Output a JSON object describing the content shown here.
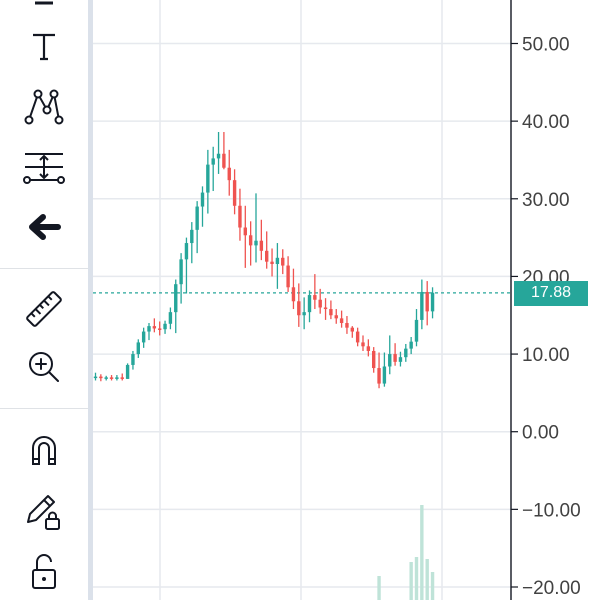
{
  "toolbar": {
    "tools": [
      {
        "name": "text-tool",
        "icon": "text-icon"
      },
      {
        "name": "pattern-tool",
        "icon": "pattern-icon"
      },
      {
        "name": "prediction-tool",
        "icon": "prediction-icon"
      },
      {
        "name": "back-tool",
        "icon": "arrow-left-icon"
      },
      {
        "name": "measure-tool",
        "icon": "ruler-icon"
      },
      {
        "name": "zoom-tool",
        "icon": "zoom-in-icon"
      },
      {
        "name": "magnet-tool",
        "icon": "magnet-icon"
      },
      {
        "name": "lock-drawings-tool",
        "icon": "pencil-lock-icon"
      },
      {
        "name": "lock-all-tool",
        "icon": "unlock-icon"
      }
    ]
  },
  "chart_data": {
    "type": "candlestick",
    "y_ticks": [
      "50.00",
      "40.00",
      "30.00",
      "20.00",
      "10.00",
      "0.00",
      "−10.00",
      "−20.00"
    ],
    "ylim": [
      -21,
      57
    ],
    "last_price": "17.88",
    "last_price_value": 17.88,
    "colors": {
      "up": "#26a69a",
      "down": "#ef5350",
      "volume": "#bfe3d8",
      "grid": "#e6e9ee",
      "last_price_line": "#26a69a"
    },
    "candles": [
      [
        7,
        7.6,
        6.6,
        7.1
      ],
      [
        7.1,
        7.4,
        6.5,
        6.9
      ],
      [
        6.9,
        7.2,
        6.6,
        7.0
      ],
      [
        7.0,
        7.3,
        6.6,
        6.8
      ],
      [
        6.8,
        7.3,
        6.6,
        7.0
      ],
      [
        7.0,
        7.5,
        6.6,
        6.8
      ],
      [
        6.8,
        8.8,
        6.8,
        8.6
      ],
      [
        8.6,
        10.4,
        8.0,
        10.0
      ],
      [
        10.0,
        11.9,
        9.5,
        11.5
      ],
      [
        11.5,
        13.4,
        10.8,
        12.9
      ],
      [
        12.9,
        14.0,
        11.8,
        13.6
      ],
      [
        13.6,
        14.6,
        12.8,
        13.3
      ],
      [
        13.3,
        14.2,
        12.4,
        13.2
      ],
      [
        13.2,
        14.3,
        12.6,
        13.9
      ],
      [
        13.9,
        16.0,
        13.2,
        15.4
      ],
      [
        15.4,
        19.6,
        12.7,
        19.0
      ],
      [
        19.0,
        23.0,
        16.5,
        22.2
      ],
      [
        22.2,
        25.0,
        17.8,
        24.3
      ],
      [
        24.3,
        27.0,
        21.7,
        26.0
      ],
      [
        26.0,
        29.7,
        23.0,
        29.0
      ],
      [
        29.0,
        31.6,
        26.4,
        30.8
      ],
      [
        30.8,
        36.3,
        28.1,
        34.4
      ],
      [
        34.4,
        36.7,
        31.0,
        35.2
      ],
      [
        35.2,
        38.6,
        33.2,
        35.8
      ],
      [
        35.8,
        38.6,
        33.8,
        34.0
      ],
      [
        34.0,
        36.3,
        30.4,
        32.4
      ],
      [
        32.4,
        33.8,
        28.0,
        29.1
      ],
      [
        29.1,
        31.3,
        24.6,
        26.3
      ],
      [
        26.3,
        29.1,
        21.1,
        25.3
      ],
      [
        25.3,
        27.1,
        21.4,
        24.0
      ],
      [
        24.0,
        30.7,
        21.8,
        24.6
      ],
      [
        24.6,
        27.3,
        22.1,
        23.3
      ],
      [
        23.3,
        25.8,
        21.0,
        21.9
      ],
      [
        21.9,
        23.6,
        20.0,
        21.6
      ],
      [
        21.6,
        24.3,
        18.4,
        22.4
      ],
      [
        22.4,
        23.5,
        20.3,
        21.4
      ],
      [
        21.4,
        22.6,
        18.0,
        18.6
      ],
      [
        18.6,
        21.0,
        15.8,
        16.8
      ],
      [
        16.8,
        19.1,
        13.5,
        15.0
      ],
      [
        15.0,
        17.3,
        13.2,
        15.4
      ],
      [
        15.4,
        18.2,
        14.1,
        17.6
      ],
      [
        17.6,
        20.3,
        15.8,
        17.0
      ],
      [
        17.0,
        18.4,
        15.2,
        16.0
      ],
      [
        16.0,
        17.2,
        14.4,
        15.8
      ],
      [
        15.8,
        16.9,
        14.5,
        15.0
      ],
      [
        15.0,
        15.8,
        13.9,
        14.6
      ],
      [
        14.6,
        15.6,
        13.4,
        14.0
      ],
      [
        14.0,
        14.9,
        12.6,
        13.4
      ],
      [
        13.4,
        13.6,
        12.1,
        12.9
      ],
      [
        12.9,
        13.4,
        11.0,
        11.5
      ],
      [
        11.5,
        12.4,
        10.4,
        11.0
      ],
      [
        11.0,
        11.9,
        9.7,
        10.4
      ],
      [
        10.4,
        10.9,
        7.6,
        8.2
      ],
      [
        8.2,
        10.2,
        5.6,
        6.2
      ],
      [
        6.2,
        10.2,
        5.8,
        8.4
      ],
      [
        8.4,
        12.4,
        7.4,
        10.0
      ],
      [
        10.0,
        11.4,
        8.5,
        9.0
      ],
      [
        9.0,
        10.3,
        8.4,
        9.6
      ],
      [
        9.6,
        11.3,
        9.0,
        10.7
      ],
      [
        10.7,
        12.2,
        10.0,
        11.6
      ],
      [
        11.6,
        15.8,
        11.0,
        14.4
      ],
      [
        14.4,
        19.6,
        13.2,
        18.0
      ],
      [
        18.0,
        19.4,
        13.7,
        15.5
      ],
      [
        15.5,
        18.6,
        14.6,
        17.9
      ]
    ],
    "volume": [
      {
        "index": 53,
        "value": 0.24
      },
      {
        "index": 59,
        "value": 0.38
      },
      {
        "index": 60,
        "value": 0.43
      },
      {
        "index": 61,
        "value": 0.95
      },
      {
        "index": 62,
        "value": 0.41
      },
      {
        "index": 63,
        "value": 0.28
      }
    ]
  }
}
